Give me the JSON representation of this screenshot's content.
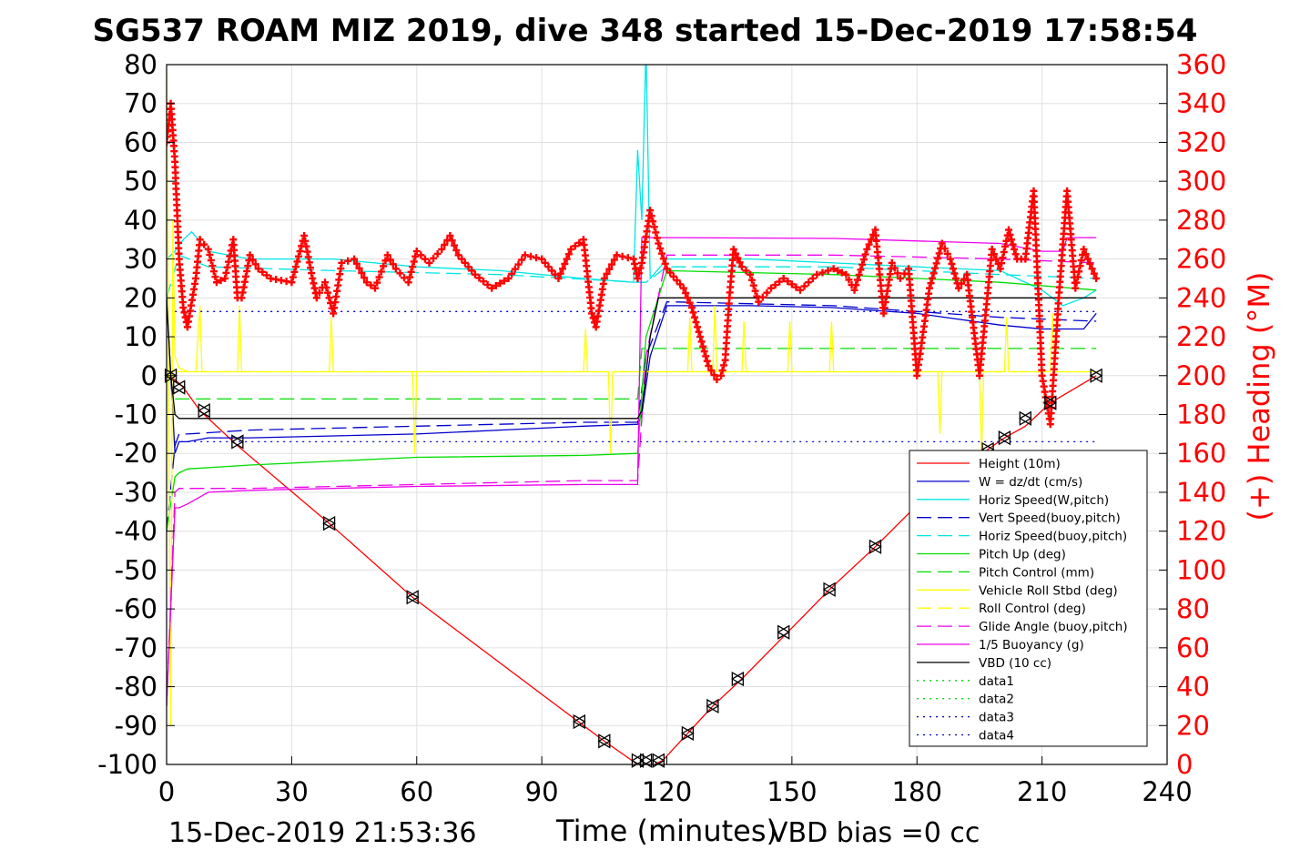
{
  "chart_data": {
    "type": "line",
    "title": "SG537 ROAM MIZ 2019, dive 348 started 15-Dec-2019 17:58:54",
    "xlabel": "Time (minutes)",
    "ylabel": "",
    "ylabel_right": "(+) Heading (°M)",
    "xlim": [
      0,
      240
    ],
    "ylim": [
      -100,
      80
    ],
    "ylim_right": [
      0,
      360
    ],
    "xticks": [
      "0",
      "30",
      "60",
      "90",
      "120",
      "150",
      "180",
      "210",
      "240"
    ],
    "yticks": [
      "80",
      "70",
      "60",
      "50",
      "40",
      "30",
      "20",
      "10",
      "0",
      "-10",
      "-20",
      "-30",
      "-40",
      "-50",
      "-60",
      "-70",
      "-80",
      "-90",
      "-100"
    ],
    "yticks_right": [
      "360",
      "340",
      "320",
      "300",
      "280",
      "260",
      "240",
      "220",
      "200",
      "180",
      "160",
      "140",
      "120",
      "100",
      "80",
      "60",
      "40",
      "20",
      "0"
    ],
    "grid": true,
    "legend_position": "lower-right",
    "footer_left": "15-Dec-2019 21:53:36",
    "footer_right": "VBD bias =0 cc",
    "colors": {
      "red": "#ff0000",
      "blue": "#0000cc",
      "cyan": "#00e5e5",
      "green": "#00dd00",
      "yellow": "#ffff00",
      "magenta": "#ee00ee",
      "black": "#000000"
    },
    "series": [
      {
        "name": "Height (10m)",
        "color": "#ff0000",
        "dash": "solid",
        "x": [
          0,
          2,
          4,
          8,
          17,
          39,
          59,
          100,
          105,
          113,
          115,
          117,
          119,
          125,
          131,
          138,
          149,
          159,
          170,
          185,
          197,
          201,
          206,
          212,
          223
        ],
        "y": [
          0,
          -1,
          -3,
          -9,
          -18,
          -38,
          -57,
          -90,
          -94,
          -100,
          -100,
          -100,
          -99,
          -92,
          -85,
          -78,
          -66,
          -55,
          -44,
          -28,
          -19,
          -16,
          -13,
          -7,
          0
        ]
      },
      {
        "name": "W = dz/dt (cm/s)",
        "color": "#0000cc",
        "dash": "solid",
        "x": [
          0,
          1,
          2,
          3,
          5,
          10,
          20,
          40,
          60,
          80,
          100,
          113,
          114,
          116,
          120,
          140,
          160,
          180,
          200,
          210,
          215,
          220,
          223
        ],
        "y": [
          20,
          0,
          -20,
          -17,
          -17,
          -16,
          -16,
          -15.5,
          -15,
          -14,
          -13,
          -12.5,
          -10,
          5,
          18,
          18,
          17.5,
          16,
          13,
          12,
          12,
          12,
          16
        ]
      },
      {
        "name": "Horiz Speed(W,pitch)",
        "color": "#00e5e5",
        "dash": "solid",
        "x": [
          0,
          2,
          4,
          6,
          10,
          20,
          40,
          60,
          80,
          100,
          112,
          113,
          114,
          115,
          116,
          120,
          140,
          160,
          180,
          200,
          210,
          215,
          220,
          223
        ],
        "y": [
          30,
          32,
          35,
          37,
          32,
          30,
          30,
          28,
          27,
          25,
          24,
          58,
          40,
          85,
          25,
          30,
          30,
          29,
          28,
          27,
          22,
          18,
          20,
          22
        ]
      },
      {
        "name": "Vert Speed(buoy,pitch)",
        "color": "#0000cc",
        "dash": "longdash",
        "x": [
          0,
          2,
          3,
          5,
          20,
          60,
          100,
          113,
          115,
          120,
          160,
          200,
          223
        ],
        "y": [
          -40,
          -18,
          -15,
          -15,
          -14,
          -13,
          -12,
          -12,
          5,
          19,
          18,
          15,
          14
        ]
      },
      {
        "name": "Horiz Speed(buoy,pitch)",
        "color": "#00e5e5",
        "dash": "longdash",
        "x": [
          0,
          3,
          10,
          40,
          80,
          113,
          115,
          120,
          160,
          200,
          223
        ],
        "y": [
          20,
          31,
          28,
          27,
          26,
          24,
          24,
          28,
          28,
          26,
          25
        ]
      },
      {
        "name": "Pitch Up (deg)",
        "color": "#00dd00",
        "dash": "solid",
        "x": [
          0,
          2,
          3,
          5,
          20,
          60,
          100,
          113,
          115,
          120,
          160,
          200,
          223
        ],
        "y": [
          -40,
          -26,
          -25,
          -24,
          -23,
          -21,
          -20.5,
          -20,
          10,
          27,
          26,
          24,
          22
        ]
      },
      {
        "name": "Pitch Control (mm)",
        "color": "#00dd00",
        "dash": "longdash",
        "x": [
          2,
          113,
          114,
          120,
          223
        ],
        "y": [
          -6,
          -6,
          7,
          7,
          7
        ]
      },
      {
        "name": "Vehicle Roll Stbd (deg)",
        "color": "#ffff00",
        "dash": "solid",
        "x": [
          0,
          1,
          1.5,
          2,
          3,
          5,
          7,
          8,
          8.5,
          9,
          17,
          17.5,
          18,
          39,
          39.5,
          40,
          59,
          59.5,
          60,
          100,
          100.5,
          101,
          106,
          106.5,
          107,
          113,
          115,
          119,
          125,
          125.5,
          126,
          131,
          131.5,
          132,
          138,
          138.5,
          139,
          149,
          149.5,
          150,
          159,
          159.5,
          160,
          185,
          185.5,
          186,
          195,
          195.5,
          196,
          201,
          201.5,
          202,
          212,
          212.5,
          213,
          223
        ],
        "y": [
          78,
          -90,
          40,
          5,
          2,
          1,
          1,
          18,
          1,
          1,
          1,
          18,
          1,
          1,
          15,
          1,
          1,
          -20,
          1,
          1,
          12,
          1,
          1,
          -20,
          1,
          1,
          1,
          1,
          1,
          15,
          1,
          1,
          18,
          1,
          1,
          14,
          1,
          1,
          14,
          1,
          1,
          14,
          1,
          1,
          -15,
          1,
          1,
          -20,
          1,
          1,
          15,
          1,
          1,
          16,
          1,
          1
        ]
      },
      {
        "name": "Roll Control (deg)",
        "color": "#ffff00",
        "dash": "longdash",
        "x": [
          2,
          113,
          114,
          223
        ],
        "y": [
          1,
          1,
          1,
          1
        ]
      },
      {
        "name": "Glide Angle (buoy,pitch)",
        "color": "#ee00ee",
        "dash": "longdash",
        "x": [
          0,
          2,
          3,
          5,
          20,
          60,
          100,
          113,
          115,
          120,
          160,
          200,
          223
        ],
        "y": [
          -85,
          -30,
          -29,
          -29,
          -29,
          -28,
          -27,
          -27,
          5,
          31,
          31,
          30,
          29
        ]
      },
      {
        "name": "1/5 Buoyancy (g)",
        "color": "#ee00ee",
        "dash": "solid",
        "x": [
          0,
          2,
          3,
          5,
          10,
          20,
          60,
          100,
          113,
          114,
          120,
          160,
          200,
          210,
          215,
          216,
          223
        ],
        "y": [
          -85,
          -34,
          -34,
          -33,
          -30,
          -29.5,
          -28.5,
          -28,
          -28,
          35.5,
          35.5,
          35.3,
          34,
          32,
          32,
          35.5,
          35.5
        ]
      },
      {
        "name": "VBD (10 cc)",
        "color": "#000000",
        "dash": "solid",
        "x": [
          0,
          1,
          2,
          3,
          113,
          114,
          116,
          118,
          120,
          223
        ],
        "y": [
          20,
          0,
          -10,
          -11,
          -11,
          -9,
          10,
          20,
          20,
          20
        ]
      },
      {
        "name": "data1",
        "color": "#00dd00",
        "dash": "dotted",
        "x": [],
        "y": []
      },
      {
        "name": "data2",
        "color": "#00dd00",
        "dash": "dotted",
        "x": [],
        "y": []
      },
      {
        "name": "data3",
        "color": "#0000cc",
        "dash": "dotted",
        "x": [
          2,
          223
        ],
        "y": [
          16.5,
          16.5
        ]
      },
      {
        "name": "data4",
        "color": "#0000cc",
        "dash": "dotted",
        "x": [
          2,
          223
        ],
        "y": [
          -17,
          -17
        ]
      }
    ],
    "heading": {
      "name": "(+) Heading (°M)",
      "color": "#ff0000",
      "marker": "+",
      "x": [
        0,
        1,
        2,
        3,
        4,
        5,
        7,
        8,
        10,
        12,
        14,
        16,
        17,
        18,
        20,
        22,
        25,
        30,
        33,
        35,
        36,
        38,
        40,
        42,
        45,
        48,
        50,
        53,
        55,
        58,
        60,
        63,
        66,
        68,
        70,
        74,
        78,
        82,
        86,
        90,
        94,
        97,
        100,
        102,
        103,
        105,
        108,
        112,
        113,
        114,
        116,
        118,
        120,
        124,
        126,
        128,
        130,
        132,
        133,
        134,
        135,
        136,
        138,
        140,
        142,
        145,
        148,
        152,
        156,
        160,
        163,
        165,
        168,
        170,
        172,
        174,
        176,
        178,
        180,
        183,
        186,
        188,
        190,
        192,
        195,
        198,
        200,
        202,
        204,
        206,
        208,
        210,
        212,
        214,
        216,
        218,
        220,
        222,
        223
      ],
      "y": [
        320,
        340,
        310,
        260,
        235,
        225,
        250,
        270,
        265,
        248,
        250,
        270,
        240,
        240,
        262,
        255,
        250,
        248,
        272,
        250,
        240,
        248,
        232,
        258,
        260,
        248,
        245,
        262,
        255,
        248,
        264,
        258,
        265,
        272,
        262,
        252,
        245,
        250,
        262,
        260,
        250,
        265,
        270,
        232,
        225,
        250,
        262,
        260,
        250,
        258,
        285,
        268,
        255,
        245,
        235,
        220,
        205,
        198,
        200,
        208,
        240,
        265,
        256,
        252,
        238,
        245,
        250,
        244,
        252,
        255,
        252,
        244,
        265,
        275,
        232,
        258,
        250,
        255,
        200,
        245,
        268,
        260,
        245,
        252,
        200,
        265,
        255,
        275,
        260,
        260,
        295,
        200,
        175,
        240,
        295,
        245,
        265,
        255,
        250
      ]
    },
    "markers": {
      "shape": "triangle-bowtie",
      "color": "#000000",
      "x": [
        1,
        3,
        9,
        17,
        39,
        59,
        99,
        105,
        113,
        115,
        118,
        125,
        131,
        137,
        148,
        159,
        170,
        197,
        201,
        206,
        212,
        223
      ],
      "y": [
        0,
        -3,
        -9,
        -17,
        -38,
        -57,
        -89,
        -94,
        -99,
        -99,
        -99,
        -92,
        -85,
        -78,
        -66,
        -55,
        -44,
        -19,
        -16,
        -11,
        -7,
        0
      ]
    }
  }
}
